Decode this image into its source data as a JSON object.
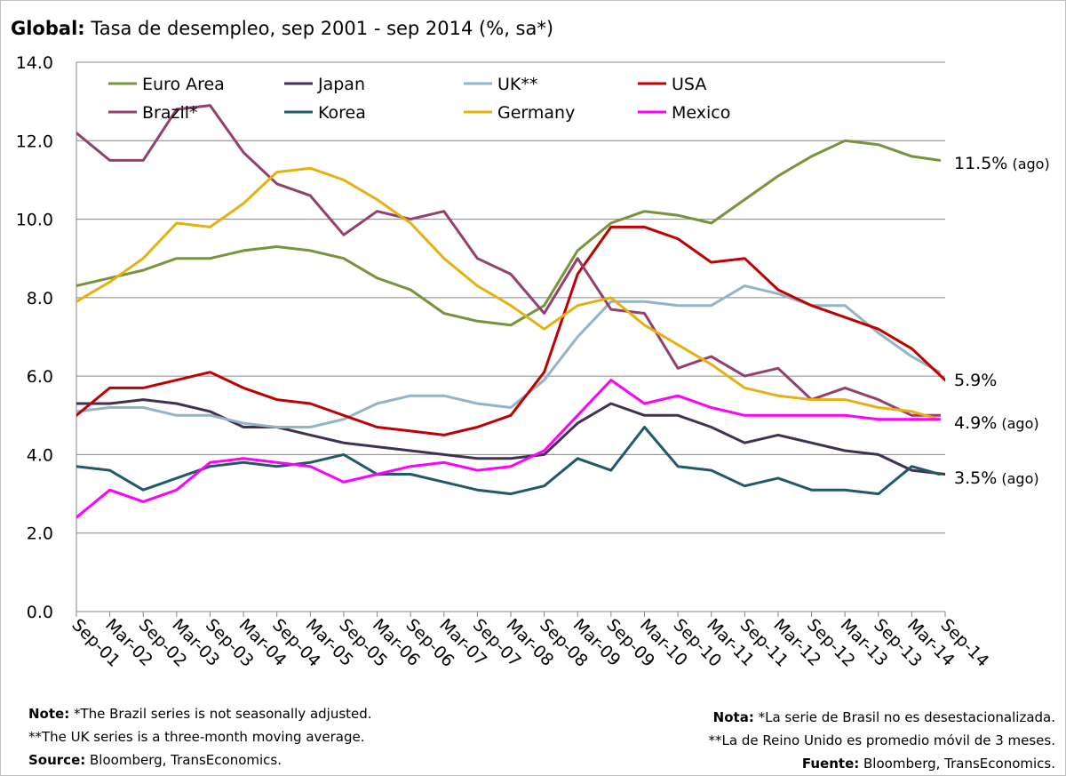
{
  "title": {
    "bold": "Global:",
    "rest": " Tasa de desempleo, sep 2001 - sep 2014 (%, sa*)"
  },
  "notes_left": {
    "l1_bold": "Note:",
    "l1_text": " *The Brazil series is not seasonally adjusted.",
    "l2_text": "**The UK series is a three-month moving average.",
    "l3_bold": "Source:",
    "l3_text": " Bloomberg, TransEconomics."
  },
  "notes_right": {
    "l1_bold": "Nota:",
    "l1_text": " *La serie de Brasil no es desestacionalizada.",
    "l2_text": "**La de Reino Unido es promedio móvil de 3 meses.",
    "l3_bold": "Fuente:",
    "l3_text": " Bloomberg, TransEconomics."
  },
  "chart_data": {
    "type": "line",
    "title": "Global: Tasa de desempleo, sep 2001 - sep 2014 (%, sa*)",
    "xlabel": "",
    "ylabel": "",
    "ylim": [
      0,
      14
    ],
    "yticks": [
      "0.0",
      "2.0",
      "4.0",
      "6.0",
      "8.0",
      "10.0",
      "12.0",
      "14.0"
    ],
    "grid": "horizontal",
    "xlim": [
      "2001-09",
      "2014-09"
    ],
    "x_tick_labels": [
      "Sep-01",
      "Mar-02",
      "Sep-02",
      "Mar-03",
      "Sep-03",
      "Mar-04",
      "Sep-04",
      "Mar-05",
      "Sep-05",
      "Mar-06",
      "Sep-06",
      "Mar-07",
      "Sep-07",
      "Mar-08",
      "Sep-08",
      "Mar-09",
      "Sep-09",
      "Mar-10",
      "Sep-10",
      "Mar-11",
      "Sep-11",
      "Mar-12",
      "Sep-12",
      "Mar-13",
      "Sep-13",
      "Mar-14",
      "Sep-14"
    ],
    "legend_position": "top-left",
    "series": [
      {
        "name": "Euro Area",
        "color": "#77933c",
        "points": [
          [
            "2001-09",
            8.3
          ],
          [
            "2002-03",
            8.5
          ],
          [
            "2002-09",
            8.7
          ],
          [
            "2003-03",
            9.0
          ],
          [
            "2003-09",
            9.0
          ],
          [
            "2004-03",
            9.2
          ],
          [
            "2004-09",
            9.3
          ],
          [
            "2005-03",
            9.2
          ],
          [
            "2005-09",
            9.0
          ],
          [
            "2006-03",
            8.5
          ],
          [
            "2006-09",
            8.2
          ],
          [
            "2007-03",
            7.6
          ],
          [
            "2007-09",
            7.4
          ],
          [
            "2008-03",
            7.3
          ],
          [
            "2008-09",
            7.8
          ],
          [
            "2009-03",
            9.2
          ],
          [
            "2009-09",
            9.9
          ],
          [
            "2010-03",
            10.2
          ],
          [
            "2010-09",
            10.1
          ],
          [
            "2011-03",
            9.9
          ],
          [
            "2011-09",
            10.5
          ],
          [
            "2012-03",
            11.1
          ],
          [
            "2012-09",
            11.6
          ],
          [
            "2013-03",
            12.0
          ],
          [
            "2013-09",
            11.9
          ],
          [
            "2014-03",
            11.6
          ],
          [
            "2014-08",
            11.5
          ]
        ]
      },
      {
        "name": "Japan",
        "color": "#403151",
        "points": [
          [
            "2001-09",
            5.3
          ],
          [
            "2002-03",
            5.3
          ],
          [
            "2002-09",
            5.4
          ],
          [
            "2003-03",
            5.3
          ],
          [
            "2003-09",
            5.1
          ],
          [
            "2004-03",
            4.7
          ],
          [
            "2004-09",
            4.7
          ],
          [
            "2005-03",
            4.5
          ],
          [
            "2005-09",
            4.3
          ],
          [
            "2006-03",
            4.2
          ],
          [
            "2006-09",
            4.1
          ],
          [
            "2007-03",
            4.0
          ],
          [
            "2007-09",
            3.9
          ],
          [
            "2008-03",
            3.9
          ],
          [
            "2008-09",
            4.0
          ],
          [
            "2009-03",
            4.8
          ],
          [
            "2009-09",
            5.3
          ],
          [
            "2010-03",
            5.0
          ],
          [
            "2010-09",
            5.0
          ],
          [
            "2011-03",
            4.7
          ],
          [
            "2011-09",
            4.3
          ],
          [
            "2012-03",
            4.5
          ],
          [
            "2012-09",
            4.3
          ],
          [
            "2013-03",
            4.1
          ],
          [
            "2013-09",
            4.0
          ],
          [
            "2014-03",
            3.6
          ],
          [
            "2014-09",
            3.5
          ]
        ]
      },
      {
        "name": "UK**",
        "color": "#93b3c6",
        "points": [
          [
            "2001-09",
            5.1
          ],
          [
            "2002-03",
            5.2
          ],
          [
            "2002-09",
            5.2
          ],
          [
            "2003-03",
            5.0
          ],
          [
            "2003-09",
            5.0
          ],
          [
            "2004-03",
            4.8
          ],
          [
            "2004-09",
            4.7
          ],
          [
            "2005-03",
            4.7
          ],
          [
            "2005-09",
            4.9
          ],
          [
            "2006-03",
            5.3
          ],
          [
            "2006-09",
            5.5
          ],
          [
            "2007-03",
            5.5
          ],
          [
            "2007-09",
            5.3
          ],
          [
            "2008-03",
            5.2
          ],
          [
            "2008-09",
            5.9
          ],
          [
            "2009-03",
            7.0
          ],
          [
            "2009-09",
            7.9
          ],
          [
            "2010-03",
            7.9
          ],
          [
            "2010-09",
            7.8
          ],
          [
            "2011-03",
            7.8
          ],
          [
            "2011-09",
            8.3
          ],
          [
            "2012-03",
            8.1
          ],
          [
            "2012-09",
            7.8
          ],
          [
            "2013-03",
            7.8
          ],
          [
            "2013-09",
            7.1
          ],
          [
            "2014-03",
            6.5
          ],
          [
            "2014-08",
            6.1
          ]
        ]
      },
      {
        "name": "USA",
        "color": "#c00000",
        "points": [
          [
            "2001-09",
            5.0
          ],
          [
            "2002-03",
            5.7
          ],
          [
            "2002-09",
            5.7
          ],
          [
            "2003-03",
            5.9
          ],
          [
            "2003-09",
            6.1
          ],
          [
            "2004-03",
            5.7
          ],
          [
            "2004-09",
            5.4
          ],
          [
            "2005-03",
            5.3
          ],
          [
            "2005-09",
            5.0
          ],
          [
            "2006-03",
            4.7
          ],
          [
            "2006-09",
            4.6
          ],
          [
            "2007-03",
            4.5
          ],
          [
            "2007-09",
            4.7
          ],
          [
            "2008-03",
            5.0
          ],
          [
            "2008-09",
            6.1
          ],
          [
            "2009-03",
            8.6
          ],
          [
            "2009-09",
            9.8
          ],
          [
            "2010-03",
            9.8
          ],
          [
            "2010-09",
            9.5
          ],
          [
            "2011-03",
            8.9
          ],
          [
            "2011-09",
            9.0
          ],
          [
            "2012-03",
            8.2
          ],
          [
            "2012-09",
            7.8
          ],
          [
            "2013-03",
            7.5
          ],
          [
            "2013-09",
            7.2
          ],
          [
            "2014-03",
            6.7
          ],
          [
            "2014-09",
            5.9
          ]
        ]
      },
      {
        "name": "Brazil*",
        "color": "#953f6e",
        "points": [
          [
            "2001-09",
            12.2
          ],
          [
            "2002-03",
            11.5
          ],
          [
            "2002-09",
            11.5
          ],
          [
            "2003-03",
            12.8
          ],
          [
            "2003-09",
            12.9
          ],
          [
            "2004-03",
            11.7
          ],
          [
            "2004-09",
            10.9
          ],
          [
            "2005-03",
            10.6
          ],
          [
            "2005-09",
            9.6
          ],
          [
            "2006-03",
            10.2
          ],
          [
            "2006-09",
            10.0
          ],
          [
            "2007-03",
            10.2
          ],
          [
            "2007-09",
            9.0
          ],
          [
            "2008-03",
            8.6
          ],
          [
            "2008-09",
            7.6
          ],
          [
            "2009-03",
            9.0
          ],
          [
            "2009-09",
            7.7
          ],
          [
            "2010-03",
            7.6
          ],
          [
            "2010-09",
            6.2
          ],
          [
            "2011-03",
            6.5
          ],
          [
            "2011-09",
            6.0
          ],
          [
            "2012-03",
            6.2
          ],
          [
            "2012-09",
            5.4
          ],
          [
            "2013-03",
            5.7
          ],
          [
            "2013-09",
            5.4
          ],
          [
            "2014-03",
            5.0
          ],
          [
            "2014-08",
            5.0
          ]
        ]
      },
      {
        "name": "Korea",
        "color": "#215968",
        "points": [
          [
            "2001-09",
            3.7
          ],
          [
            "2002-03",
            3.6
          ],
          [
            "2002-09",
            3.1
          ],
          [
            "2003-03",
            3.4
          ],
          [
            "2003-09",
            3.7
          ],
          [
            "2004-03",
            3.8
          ],
          [
            "2004-09",
            3.7
          ],
          [
            "2005-03",
            3.8
          ],
          [
            "2005-09",
            4.0
          ],
          [
            "2006-03",
            3.5
          ],
          [
            "2006-09",
            3.5
          ],
          [
            "2007-03",
            3.3
          ],
          [
            "2007-09",
            3.1
          ],
          [
            "2008-03",
            3.0
          ],
          [
            "2008-09",
            3.2
          ],
          [
            "2009-03",
            3.9
          ],
          [
            "2009-09",
            3.6
          ],
          [
            "2010-03",
            4.7
          ],
          [
            "2010-09",
            3.7
          ],
          [
            "2011-03",
            3.6
          ],
          [
            "2011-09",
            3.2
          ],
          [
            "2012-03",
            3.4
          ],
          [
            "2012-09",
            3.1
          ],
          [
            "2013-03",
            3.1
          ],
          [
            "2013-09",
            3.0
          ],
          [
            "2014-03",
            3.7
          ],
          [
            "2014-08",
            3.5
          ]
        ]
      },
      {
        "name": "Germany",
        "color": "#e6b110",
        "points": [
          [
            "2001-09",
            7.9
          ],
          [
            "2002-03",
            8.4
          ],
          [
            "2002-09",
            9.0
          ],
          [
            "2003-03",
            9.9
          ],
          [
            "2003-09",
            9.8
          ],
          [
            "2004-03",
            10.4
          ],
          [
            "2004-09",
            11.2
          ],
          [
            "2005-03",
            11.3
          ],
          [
            "2005-09",
            11.0
          ],
          [
            "2006-03",
            10.5
          ],
          [
            "2006-09",
            9.9
          ],
          [
            "2007-03",
            9.0
          ],
          [
            "2007-09",
            8.3
          ],
          [
            "2008-03",
            7.8
          ],
          [
            "2008-09",
            7.2
          ],
          [
            "2009-03",
            7.8
          ],
          [
            "2009-09",
            8.0
          ],
          [
            "2010-03",
            7.3
          ],
          [
            "2010-09",
            6.8
          ],
          [
            "2011-03",
            6.3
          ],
          [
            "2011-09",
            5.7
          ],
          [
            "2012-03",
            5.5
          ],
          [
            "2012-09",
            5.4
          ],
          [
            "2013-03",
            5.4
          ],
          [
            "2013-09",
            5.2
          ],
          [
            "2014-03",
            5.1
          ],
          [
            "2014-08",
            4.9
          ]
        ]
      },
      {
        "name": "Mexico",
        "color": "#ff00ff",
        "points": [
          [
            "2001-09",
            2.4
          ],
          [
            "2002-03",
            3.1
          ],
          [
            "2002-09",
            2.8
          ],
          [
            "2003-03",
            3.1
          ],
          [
            "2003-09",
            3.8
          ],
          [
            "2004-03",
            3.9
          ],
          [
            "2004-09",
            3.8
          ],
          [
            "2005-03",
            3.7
          ],
          [
            "2005-09",
            3.3
          ],
          [
            "2006-03",
            3.5
          ],
          [
            "2006-09",
            3.7
          ],
          [
            "2007-03",
            3.8
          ],
          [
            "2007-09",
            3.6
          ],
          [
            "2008-03",
            3.7
          ],
          [
            "2008-09",
            4.1
          ],
          [
            "2009-03",
            5.0
          ],
          [
            "2009-09",
            5.9
          ],
          [
            "2010-03",
            5.3
          ],
          [
            "2010-09",
            5.5
          ],
          [
            "2011-03",
            5.2
          ],
          [
            "2011-09",
            5.0
          ],
          [
            "2012-03",
            5.0
          ],
          [
            "2012-09",
            5.0
          ],
          [
            "2013-03",
            5.0
          ],
          [
            "2013-09",
            4.9
          ],
          [
            "2014-03",
            4.9
          ],
          [
            "2014-08",
            4.9
          ]
        ]
      }
    ],
    "annotations": [
      {
        "text": "11.5%",
        "suffix": " (ago)",
        "y": 11.5
      },
      {
        "text": "5.9%",
        "suffix": "",
        "y": 5.9
      },
      {
        "text": "4.9%",
        "suffix": " (ago)",
        "y": 4.9
      },
      {
        "text": "3.5%",
        "suffix": " (ago)",
        "y": 3.5
      }
    ]
  }
}
